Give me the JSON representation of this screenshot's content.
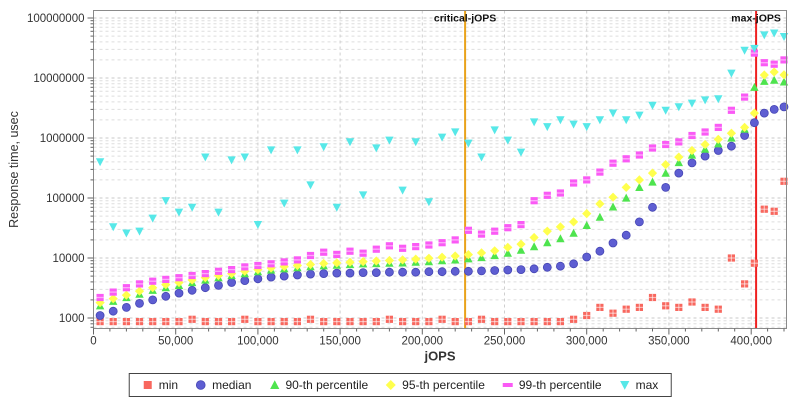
{
  "chart_data": {
    "type": "scatter",
    "title": "",
    "xlabel": "jOPS",
    "ylabel": "Response time, usec",
    "x_axis": {
      "min": 0,
      "max": 421500,
      "tick_step": 50000,
      "ticks": [
        0,
        50000,
        100000,
        150000,
        200000,
        250000,
        300000,
        350000,
        400000
      ],
      "minor_tick_step": 10000
    },
    "y_axis": {
      "scale": "log",
      "ticks": [
        1000,
        10000,
        100000,
        1000000,
        10000000,
        100000000
      ],
      "bottom_value": 660,
      "top_value": 135000000
    },
    "grid": true,
    "legend_position": "bottom",
    "ref_lines": [
      {
        "label": "critical-jOPS",
        "jops": 226000,
        "color": "#e9a21a"
      },
      {
        "label": "max-jOPS",
        "jops": 403000,
        "color": "#ef2020"
      }
    ],
    "x_jops": [
      4000,
      12000,
      20000,
      28000,
      36000,
      44000,
      52000,
      60000,
      68000,
      76000,
      84000,
      92000,
      100000,
      108000,
      116000,
      124000,
      132000,
      140000,
      148000,
      156000,
      164000,
      172000,
      180000,
      188000,
      196000,
      204000,
      212000,
      220000,
      228000,
      236000,
      244000,
      252000,
      260000,
      268000,
      276000,
      284000,
      292000,
      300000,
      308000,
      316000,
      324000,
      332000,
      340000,
      348000,
      356000,
      364000,
      372000,
      380000,
      388000,
      396000,
      402000,
      408000,
      414000,
      420000
    ],
    "series": [
      {
        "name": "min",
        "marker": "square-cross",
        "legend_marker": "square",
        "color": "#f8675e",
        "values": [
          870,
          870,
          870,
          870,
          870,
          870,
          870,
          950,
          870,
          870,
          870,
          950,
          870,
          870,
          870,
          870,
          950,
          870,
          870,
          870,
          870,
          870,
          950,
          870,
          870,
          870,
          950,
          870,
          870,
          950,
          870,
          870,
          870,
          870,
          870,
          870,
          950,
          1100,
          1500,
          1200,
          1400,
          1500,
          2200,
          1600,
          1500,
          1850,
          1500,
          1400,
          10000,
          3700,
          8200,
          65000,
          60000,
          190000
        ]
      },
      {
        "name": "median",
        "marker": "circle",
        "legend_marker": "circle",
        "color": "#5e5ed2",
        "values": [
          1100,
          1300,
          1500,
          1750,
          2000,
          2300,
          2600,
          2900,
          3200,
          3500,
          3900,
          4200,
          4500,
          4800,
          5000,
          5200,
          5400,
          5500,
          5600,
          5600,
          5700,
          5700,
          5800,
          5800,
          5800,
          5900,
          5900,
          6000,
          6000,
          6100,
          6200,
          6300,
          6400,
          6600,
          7000,
          7300,
          8000,
          10400,
          13000,
          17800,
          24000,
          40000,
          70000,
          150000,
          260000,
          385000,
          500000,
          620000,
          730000,
          1100000,
          1800000,
          2600000,
          3000000,
          3300000
        ]
      },
      {
        "name": "90-th percentile",
        "marker": "triangle-up",
        "legend_marker": "triangle-up",
        "color": "#4ee44e",
        "values": [
          1600,
          1900,
          2200,
          2500,
          2900,
          3200,
          3500,
          3900,
          4300,
          4700,
          5100,
          5500,
          5900,
          6300,
          6600,
          6900,
          7200,
          7400,
          7600,
          7800,
          8000,
          8100,
          8200,
          8300,
          8500,
          8700,
          9000,
          9300,
          9700,
          10200,
          11000,
          12000,
          13500,
          15500,
          18000,
          21000,
          26000,
          35000,
          48000,
          71000,
          100000,
          150000,
          185000,
          260000,
          390000,
          520000,
          650000,
          800000,
          1000000,
          1400000,
          7000000,
          8800000,
          9200000,
          8600000
        ]
      },
      {
        "name": "95-th percentile",
        "marker": "diamond",
        "legend_marker": "diamond",
        "color": "#ffff4d",
        "values": [
          1800,
          2100,
          2400,
          2800,
          3200,
          3600,
          3900,
          4300,
          4700,
          5100,
          5500,
          6000,
          6400,
          6800,
          7200,
          7500,
          7800,
          8100,
          8300,
          8500,
          8700,
          8900,
          9100,
          9300,
          9600,
          9900,
          10300,
          10800,
          11400,
          12200,
          13200,
          15000,
          17000,
          22000,
          28000,
          33000,
          40000,
          55000,
          80000,
          103000,
          150000,
          200000,
          260000,
          360000,
          480000,
          620000,
          780000,
          950000,
          1200000,
          1500000,
          2600000,
          11200000,
          12600000,
          11300000
        ]
      },
      {
        "name": "99-th percentile",
        "marker": "square-stripe",
        "legend_marker": "hbar",
        "color": "#fa5af5",
        "values": [
          2200,
          2700,
          3200,
          3700,
          4100,
          4400,
          4700,
          5100,
          5500,
          6000,
          6400,
          7100,
          7500,
          8000,
          8600,
          9300,
          11000,
          12500,
          11500,
          13000,
          12000,
          14000,
          16000,
          14500,
          15500,
          16500,
          18000,
          20000,
          29000,
          25000,
          28000,
          32000,
          36000,
          90000,
          111000,
          121000,
          178000,
          200000,
          270000,
          380000,
          450000,
          520000,
          680000,
          780000,
          860000,
          1100000,
          1260000,
          1500000,
          2900000,
          4800000,
          26000000,
          18000000,
          17000000,
          20000000
        ]
      },
      {
        "name": "max",
        "marker": "triangle-down",
        "legend_marker": "triangle-down",
        "color": "#57e8e8",
        "values": [
          400000,
          33000,
          26000,
          28000,
          46000,
          90000,
          58000,
          70000,
          480000,
          58000,
          430000,
          480000,
          36000,
          630000,
          82000,
          630000,
          165000,
          710000,
          70000,
          860000,
          112000,
          680000,
          920000,
          135000,
          860000,
          86000,
          1030000,
          1260000,
          820000,
          480000,
          1360000,
          920000,
          580000,
          1850000,
          1540000,
          2000000,
          1700000,
          1540000,
          2000000,
          2600000,
          2000000,
          2400000,
          3500000,
          2900000,
          3300000,
          3800000,
          4300000,
          4500000,
          12000000,
          29000000,
          31000000,
          52000000,
          56000000,
          49000000
        ]
      }
    ],
    "colors": {
      "grid_minor": "#dedede",
      "grid_major": "#c9c9c9",
      "plot_border": "#8a8a8a",
      "tick_text": "#333333",
      "axis_title_text": "#333333",
      "ref_label_text": "#111111"
    }
  },
  "legend": {
    "items": [
      {
        "label": "min"
      },
      {
        "label": "median"
      },
      {
        "label": "90-th percentile"
      },
      {
        "label": "95-th percentile"
      },
      {
        "label": "99-th percentile"
      },
      {
        "label": "max"
      }
    ]
  }
}
